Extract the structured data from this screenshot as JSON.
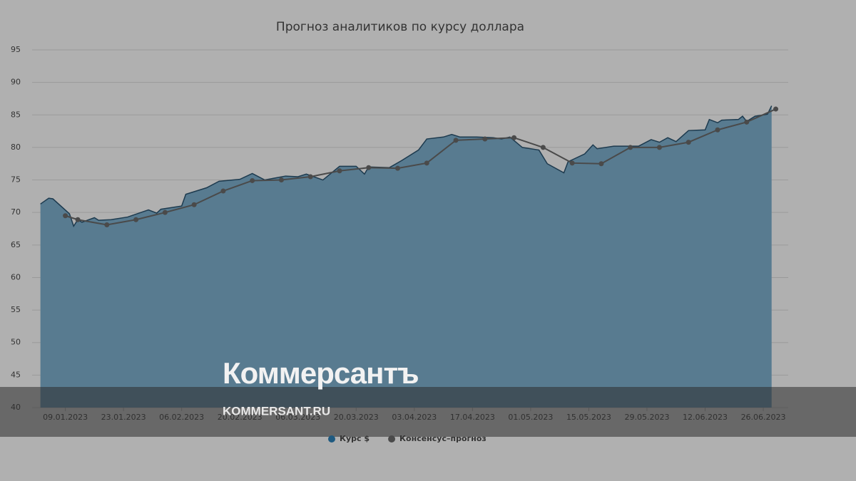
{
  "chart_data": {
    "type": "area_line",
    "title": "Прогноз аналитиков по курсу доллара",
    "watermark": {
      "brand": "Коммерсантъ",
      "site": "KOMMERSANT.RU"
    },
    "xlim": [
      "2023-01-01",
      "2023-07-02"
    ],
    "xticks": [
      {
        "value": "2023-01-09",
        "label": "09.01.2023"
      },
      {
        "value": "2023-01-23",
        "label": "23.01.2023"
      },
      {
        "value": "2023-02-06",
        "label": "06.02.2023"
      },
      {
        "value": "2023-02-20",
        "label": "20.02.2023"
      },
      {
        "value": "2023-03-06",
        "label": "06.03.2023"
      },
      {
        "value": "2023-03-20",
        "label": "20.03.2023"
      },
      {
        "value": "2023-04-03",
        "label": "03.04.2023"
      },
      {
        "value": "2023-04-17",
        "label": "17.04.2023"
      },
      {
        "value": "2023-05-01",
        "label": "01.05.2023"
      },
      {
        "value": "2023-05-15",
        "label": "15.05.2023"
      },
      {
        "value": "2023-05-29",
        "label": "29.05.2023"
      },
      {
        "value": "2023-06-12",
        "label": "12.06.2023"
      },
      {
        "value": "2023-06-26",
        "label": "26.06.2023"
      }
    ],
    "ylim": [
      40,
      95
    ],
    "yticks": [
      40,
      45,
      50,
      55,
      60,
      65,
      70,
      75,
      80,
      85,
      90,
      95
    ],
    "grid": true,
    "series": [
      {
        "name": "Курс $",
        "kind": "area",
        "color": "#1f5a80",
        "x": [
          "2023-01-03",
          "2023-01-05",
          "2023-01-06",
          "2023-01-10",
          "2023-01-11",
          "2023-01-12",
          "2023-01-13",
          "2023-01-16",
          "2023-01-17",
          "2023-01-20",
          "2023-01-24",
          "2023-01-29",
          "2023-01-31",
          "2023-02-01",
          "2023-02-06",
          "2023-02-07",
          "2023-02-12",
          "2023-02-15",
          "2023-02-20",
          "2023-02-23",
          "2023-02-26",
          "2023-03-03",
          "2023-03-06",
          "2023-03-08",
          "2023-03-12",
          "2023-03-16",
          "2023-03-20",
          "2023-03-22",
          "2023-03-23",
          "2023-03-28",
          "2023-03-31",
          "2023-04-04",
          "2023-04-06",
          "2023-04-10",
          "2023-04-12",
          "2023-04-14",
          "2023-04-18",
          "2023-04-22",
          "2023-04-24",
          "2023-04-26",
          "2023-04-29",
          "2023-05-03",
          "2023-05-05",
          "2023-05-09",
          "2023-05-10",
          "2023-05-14",
          "2023-05-16",
          "2023-05-17",
          "2023-05-21",
          "2023-05-27",
          "2023-05-30",
          "2023-06-01",
          "2023-06-03",
          "2023-06-05",
          "2023-06-08",
          "2023-06-12",
          "2023-06-13",
          "2023-06-15",
          "2023-06-16",
          "2023-06-20",
          "2023-06-21",
          "2023-06-22",
          "2023-06-24",
          "2023-06-26",
          "2023-06-27",
          "2023-06-28"
        ],
        "values": [
          71.3,
          72.2,
          72.1,
          69.8,
          67.9,
          68.9,
          68.5,
          69.2,
          68.8,
          68.9,
          69.3,
          70.4,
          69.9,
          70.5,
          71.0,
          72.8,
          73.8,
          74.8,
          75.1,
          76.0,
          75.0,
          75.6,
          75.5,
          75.9,
          75.0,
          77.1,
          77.1,
          75.9,
          77.0,
          76.9,
          78.0,
          79.6,
          81.3,
          81.6,
          82.0,
          81.6,
          81.6,
          81.5,
          81.3,
          81.6,
          80.0,
          79.6,
          77.5,
          76.1,
          77.8,
          79.0,
          80.4,
          79.8,
          80.2,
          80.2,
          81.2,
          80.8,
          81.5,
          80.9,
          82.6,
          82.7,
          84.3,
          83.8,
          84.2,
          84.3,
          84.8,
          84.0,
          84.8,
          85.0,
          85.1,
          86.4
        ]
      },
      {
        "name": "Консенсус–прогноз",
        "kind": "line",
        "color": "#4a4a4a",
        "x": [
          "2023-01-09",
          "2023-01-12",
          "2023-01-19",
          "2023-01-26",
          "2023-02-02",
          "2023-02-09",
          "2023-02-16",
          "2023-02-23",
          "2023-03-02",
          "2023-03-09",
          "2023-03-16",
          "2023-03-23",
          "2023-03-30",
          "2023-04-06",
          "2023-04-13",
          "2023-04-20",
          "2023-04-27",
          "2023-05-04",
          "2023-05-11",
          "2023-05-18",
          "2023-05-25",
          "2023-06-01",
          "2023-06-08",
          "2023-06-15",
          "2023-06-22",
          "2023-06-29"
        ],
        "values": [
          69.5,
          68.9,
          68.1,
          68.9,
          70.0,
          71.2,
          73.3,
          74.9,
          75.0,
          75.5,
          76.4,
          76.9,
          76.8,
          77.6,
          81.1,
          81.3,
          81.5,
          80.0,
          77.6,
          77.5,
          80.0,
          80.0,
          80.8,
          82.7,
          83.9,
          85.9
        ]
      }
    ]
  }
}
